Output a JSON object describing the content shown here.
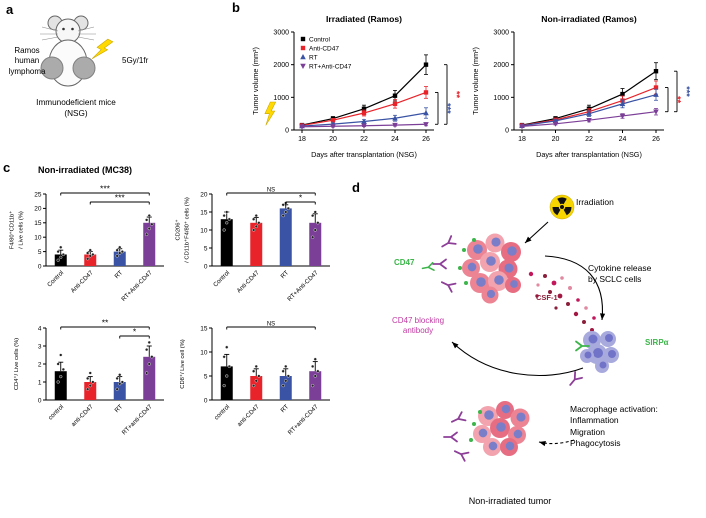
{
  "panels": {
    "a": {
      "label": "a",
      "cell_line": "Ramos\nhuman\nlymphoma",
      "dose": "5Gy/1fr",
      "mouse_model": "Immunodeficient mice\n(NSG)"
    },
    "b": {
      "label": "b"
    },
    "c": {
      "label": "c",
      "title": "Non-irradiated (MC38)"
    },
    "d": {
      "label": "d",
      "irradiation": "Irradiation",
      "cd47": "CD47",
      "cytokine_release": "Cytokine release\nby SCLC cells",
      "csf1": "CSF-1",
      "blocking_antibody": "CD47 blocking\nantibody",
      "sirpa": "SIRPα",
      "macrophage_activation": "Macrophage activation:\nInflammation\nMigration\nPhagocytosis",
      "caption": "Non-irradiated tumor"
    }
  },
  "colors": {
    "control": "#000000",
    "anti_cd47": "#e8232a",
    "rt": "#3a53a4",
    "rt_anti_cd47": "#7c3f98",
    "green": "#3cb54a",
    "magenta": "#c13aa3",
    "csf1": "#8b1f3a",
    "lightning": "#ffd900"
  },
  "chart_data": [
    {
      "id": "chart-b1",
      "type": "line",
      "title": "Irradiated (Ramos)",
      "xlabel": "Days after transplantation (NSG)",
      "ylabel": "Tumor volume (mm³)",
      "x": [
        18,
        20,
        22,
        24,
        26
      ],
      "ylim": [
        0,
        3000
      ],
      "yticks": [
        0,
        1000,
        2000,
        3000
      ],
      "legend": true,
      "lightning": true,
      "series": [
        {
          "name": "Control",
          "color": "#000000",
          "marker": "square",
          "values": [
            150,
            350,
            650,
            1050,
            2000
          ],
          "errors": [
            30,
            60,
            110,
            160,
            300
          ]
        },
        {
          "name": "Anti-CD47",
          "color": "#e8232a",
          "marker": "square",
          "values": [
            140,
            300,
            520,
            800,
            1150
          ],
          "errors": [
            30,
            50,
            90,
            130,
            180
          ]
        },
        {
          "name": "RT",
          "color": "#3a53a4",
          "marker": "triangle-up",
          "values": [
            120,
            180,
            260,
            360,
            520
          ],
          "errors": [
            25,
            35,
            55,
            90,
            160
          ]
        },
        {
          "name": "RT+Anti-CD47",
          "color": "#7c3f98",
          "marker": "triangle-down",
          "values": [
            100,
            115,
            130,
            150,
            175
          ],
          "errors": [
            20,
            25,
            25,
            30,
            45
          ]
        }
      ],
      "sig": [
        {
          "text": "**",
          "color": "#e8232a",
          "from": 0,
          "to": 3,
          "offset": 1
        },
        {
          "text": "***",
          "color": "#3a53a4",
          "from": 1,
          "to": 3,
          "offset": 0
        }
      ]
    },
    {
      "id": "chart-b2",
      "type": "line",
      "title": "Non-irradiated (Ramos)",
      "xlabel": "Days after transplantation (NSG)",
      "ylabel": "Tumor volume (mm³)",
      "x": [
        18,
        20,
        22,
        24,
        26
      ],
      "ylim": [
        0,
        3000
      ],
      "yticks": [
        0,
        1000,
        2000,
        3000
      ],
      "legend": false,
      "lightning": false,
      "series": [
        {
          "name": "Control",
          "color": "#000000",
          "marker": "square",
          "values": [
            150,
            350,
            650,
            1100,
            1800
          ],
          "errors": [
            30,
            60,
            110,
            170,
            260
          ]
        },
        {
          "name": "Anti-CD47",
          "color": "#e8232a",
          "marker": "square",
          "values": [
            140,
            310,
            560,
            900,
            1300
          ],
          "errors": [
            30,
            55,
            95,
            140,
            200
          ]
        },
        {
          "name": "RT",
          "color": "#3a53a4",
          "marker": "triangle-up",
          "values": [
            130,
            280,
            500,
            800,
            1080
          ],
          "errors": [
            25,
            50,
            85,
            120,
            170
          ]
        },
        {
          "name": "RT+Anti-CD47",
          "color": "#7c3f98",
          "marker": "triangle-down",
          "values": [
            110,
            190,
            300,
            430,
            560
          ],
          "errors": [
            20,
            35,
            50,
            70,
            100
          ]
        }
      ],
      "sig": [
        {
          "text": "***",
          "color": "#3a53a4",
          "from": 0,
          "to": 3,
          "offset": 1
        },
        {
          "text": "**",
          "color": "#e8232a",
          "from": 1,
          "to": 3,
          "offset": 0
        }
      ]
    },
    {
      "id": "chart-c1",
      "type": "bar",
      "ylabel": "F4/80⁺CD11b⁺\n/ Live cells (%)",
      "categories": [
        "Control",
        "Anti-CD47",
        "RT",
        "RT+Anti-CD47"
      ],
      "colors": [
        "#000000",
        "#e8232a",
        "#3a53a4",
        "#7c3f98"
      ],
      "values": [
        4,
        4,
        5,
        15
      ],
      "errors": [
        1.5,
        1,
        1,
        2
      ],
      "points": [
        [
          2,
          3,
          4,
          5,
          6.5
        ],
        [
          2.5,
          3.5,
          4,
          4.5,
          5.5
        ],
        [
          3.5,
          4.5,
          5,
          5.5,
          6.5
        ],
        [
          11,
          13,
          14.5,
          16,
          17.5
        ]
      ],
      "ylim": [
        0,
        25
      ],
      "yticks": [
        0,
        5,
        10,
        15,
        20,
        25
      ],
      "sig": [
        {
          "from": 0,
          "to": 3,
          "text": "***"
        },
        {
          "from": 1,
          "to": 3,
          "text": "***"
        }
      ]
    },
    {
      "id": "chart-c2",
      "type": "bar",
      "ylabel": "CD206⁺\n/ CD11b⁺F4/80⁺ cells (%)",
      "categories": [
        "Control",
        "Anti-CD47",
        "RT",
        "RT+Anti-CD47"
      ],
      "colors": [
        "#000000",
        "#e8232a",
        "#3a53a4",
        "#7c3f98"
      ],
      "values": [
        13,
        12,
        16,
        12
      ],
      "errors": [
        2,
        1.5,
        1,
        2.5
      ],
      "points": [
        [
          10,
          12,
          13,
          14,
          15
        ],
        [
          10,
          11,
          12,
          13,
          14
        ],
        [
          14,
          15,
          16,
          17,
          17.5
        ],
        [
          8,
          10,
          12,
          14,
          15
        ]
      ],
      "ylim": [
        0,
        20
      ],
      "yticks": [
        0,
        5,
        10,
        15,
        20
      ],
      "sig": [
        {
          "from": 0,
          "to": 3,
          "text": "NS"
        },
        {
          "from": 2,
          "to": 3,
          "text": "*"
        }
      ]
    },
    {
      "id": "chart-c3",
      "type": "bar",
      "ylabel": "CD4⁺/ Live cells (%)",
      "categories": [
        "control",
        "anti-CD47",
        "RT",
        "RT+anti-CD47"
      ],
      "colors": [
        "#000000",
        "#e8232a",
        "#3a53a4",
        "#7c3f98"
      ],
      "values": [
        1.6,
        1,
        1,
        2.4
      ],
      "errors": [
        0.5,
        0.3,
        0.3,
        0.6
      ],
      "points": [
        [
          1,
          1.3,
          1.7,
          2,
          2.5
        ],
        [
          0.6,
          0.8,
          1,
          1.2,
          1.5
        ],
        [
          0.6,
          0.9,
          1,
          1.2,
          1.4
        ],
        [
          1.5,
          2,
          2.4,
          2.8,
          3.2
        ]
      ],
      "ylim": [
        0,
        4
      ],
      "yticks": [
        0,
        1,
        2,
        3,
        4
      ],
      "sig": [
        {
          "from": 0,
          "to": 3,
          "text": "**"
        },
        {
          "from": 2,
          "to": 3,
          "text": "*"
        }
      ]
    },
    {
      "id": "chart-c4",
      "type": "bar",
      "ylabel": "CD8⁺/ Live cell (%)",
      "categories": [
        "control",
        "anti-CD47",
        "RT",
        "RT+anti-CD47"
      ],
      "colors": [
        "#000000",
        "#e8232a",
        "#3a53a4",
        "#7c3f98"
      ],
      "values": [
        7,
        5,
        5,
        6
      ],
      "errors": [
        2.5,
        1.5,
        1.5,
        2
      ],
      "points": [
        [
          3,
          5,
          7,
          9,
          11
        ],
        [
          3,
          4,
          5,
          6,
          7
        ],
        [
          3,
          4,
          5,
          6,
          7
        ],
        [
          3,
          5,
          6,
          7,
          8.5
        ]
      ],
      "ylim": [
        0,
        15
      ],
      "yticks": [
        0,
        5,
        10,
        15
      ],
      "sig": [
        {
          "from": 0,
          "to": 3,
          "text": "NS"
        }
      ]
    }
  ]
}
